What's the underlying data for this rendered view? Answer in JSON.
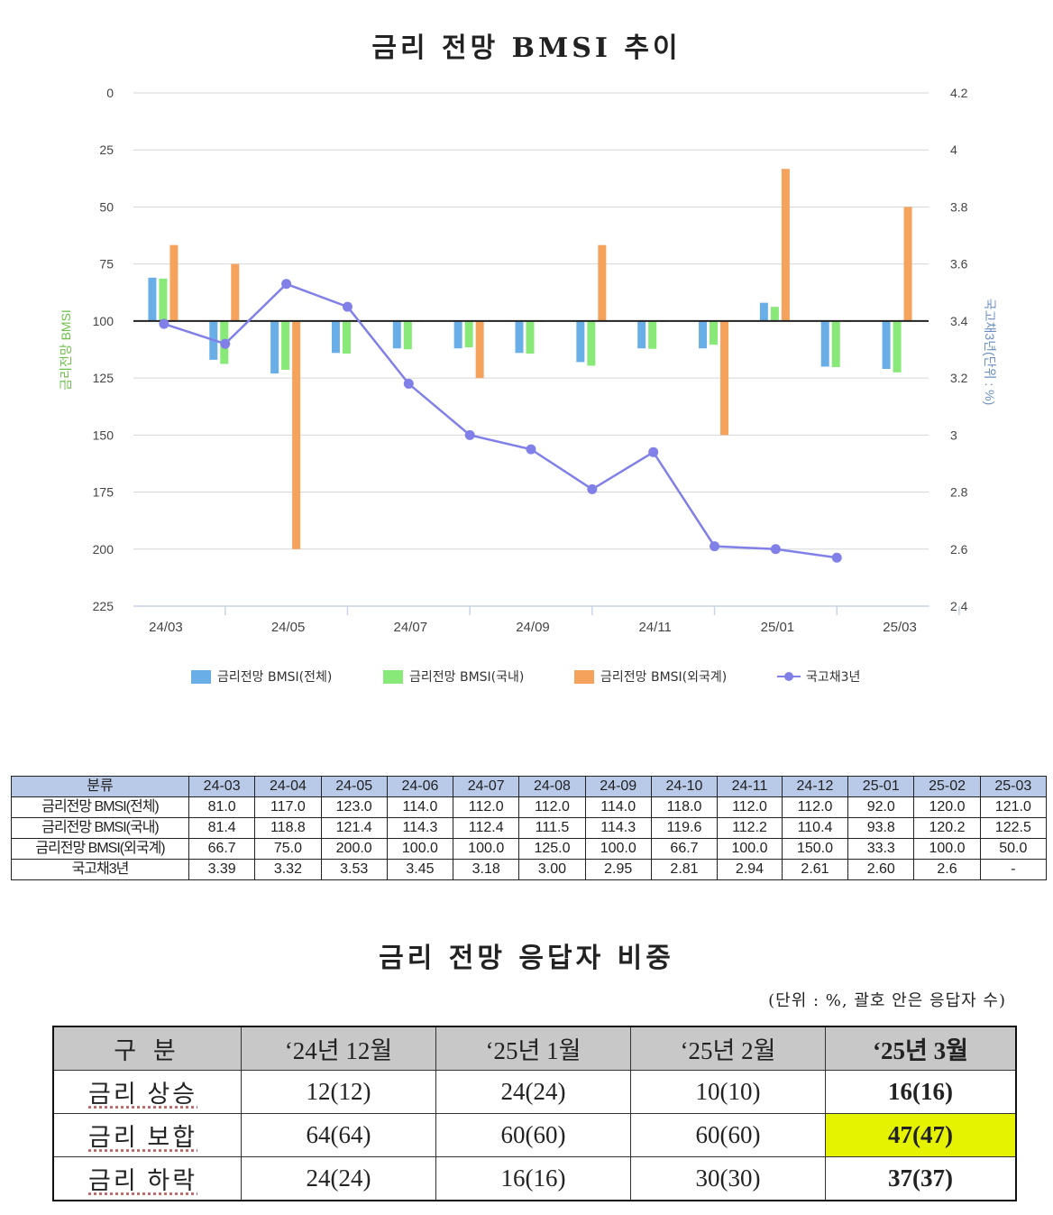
{
  "chart_title": "금리 전망 BMSI 추이",
  "chart_data": {
    "type": "bar",
    "title": "금리 전망 BMSI 추이",
    "categories": [
      "24-03",
      "24-04",
      "24-05",
      "24-06",
      "24-07",
      "24-08",
      "24-09",
      "24-10",
      "24-11",
      "24-12",
      "25-01",
      "25-02",
      "25-03"
    ],
    "x_tick_labels": [
      "24/03",
      "24/05",
      "24/07",
      "24/09",
      "24/11",
      "25/01",
      "25/03"
    ],
    "series": [
      {
        "name": "금리전망 BMSI(전체)",
        "type": "bar",
        "axis": "left",
        "color": "#6aaee8",
        "values": [
          81.0,
          117.0,
          123.0,
          114.0,
          112.0,
          112.0,
          114.0,
          118.0,
          112.0,
          112.0,
          92.0,
          120.0,
          121.0
        ]
      },
      {
        "name": "금리전망 BMSI(국내)",
        "type": "bar",
        "axis": "left",
        "color": "#88e878",
        "values": [
          81.4,
          118.8,
          121.4,
          114.3,
          112.4,
          111.5,
          114.3,
          119.6,
          112.2,
          110.4,
          93.8,
          120.2,
          122.5
        ]
      },
      {
        "name": "금리전망 BMSI(외국계)",
        "type": "bar",
        "axis": "left",
        "color": "#f5a25d",
        "values": [
          66.7,
          75.0,
          200.0,
          100.0,
          100.0,
          125.0,
          100.0,
          66.7,
          100.0,
          150.0,
          33.3,
          100.0,
          50.0
        ]
      },
      {
        "name": "국고채3년",
        "type": "line",
        "axis": "right",
        "color": "#8080e8",
        "values": [
          3.39,
          3.32,
          3.53,
          3.45,
          3.18,
          3.0,
          2.95,
          2.81,
          2.94,
          2.61,
          2.6,
          2.57,
          null
        ]
      }
    ],
    "left_axis": {
      "label": "금리전망 BMSI",
      "min": 0,
      "max": 225,
      "reversed": true,
      "ticks": [
        0,
        25,
        50,
        75,
        100,
        125,
        150,
        175,
        200,
        225
      ],
      "baseline": 100,
      "label_color": "#6cc04a"
    },
    "right_axis": {
      "label": "국고채3년(단위 : %)",
      "min": 2.4,
      "max": 4.2,
      "ticks": [
        "4.2",
        "4",
        "3.8",
        "3.6",
        "3.4",
        "3.2",
        "3",
        "2.8",
        "2.6",
        "2.4"
      ],
      "label_color": "#6a8fc0"
    },
    "grid": true,
    "legend_position": "bottom"
  },
  "data_table": {
    "header_label": "분류",
    "columns": [
      "24-03",
      "24-04",
      "24-05",
      "24-06",
      "24-07",
      "24-08",
      "24-09",
      "24-10",
      "24-11",
      "24-12",
      "25-01",
      "25-02",
      "25-03"
    ],
    "rows": [
      {
        "label": "금리전망 BMSI(전체)",
        "values": [
          "81.0",
          "117.0",
          "123.0",
          "114.0",
          "112.0",
          "112.0",
          "114.0",
          "118.0",
          "112.0",
          "112.0",
          "92.0",
          "120.0",
          "121.0"
        ]
      },
      {
        "label": "금리전망 BMSI(국내)",
        "values": [
          "81.4",
          "118.8",
          "121.4",
          "114.3",
          "112.4",
          "111.5",
          "114.3",
          "119.6",
          "112.2",
          "110.4",
          "93.8",
          "120.2",
          "122.5"
        ]
      },
      {
        "label": "금리전망 BMSI(외국계)",
        "values": [
          "66.7",
          "75.0",
          "200.0",
          "100.0",
          "100.0",
          "125.0",
          "100.0",
          "66.7",
          "100.0",
          "150.0",
          "33.3",
          "100.0",
          "50.0"
        ]
      },
      {
        "label": "국고채3년",
        "values": [
          "3.39",
          "3.32",
          "3.53",
          "3.45",
          "3.18",
          "3.00",
          "2.95",
          "2.81",
          "2.94",
          "2.61",
          "2.60",
          "2.6",
          "-"
        ]
      }
    ]
  },
  "response_section": {
    "title": "금리 전망 응답자 비중",
    "unit_note": "(단위 : %, 괄호 안은 응답자 수)",
    "header": {
      "category": "구 분",
      "c1": "‘24년 12월",
      "c2": "‘25년 1월",
      "c3": "‘25년 2월",
      "c4": "‘25년 3월"
    },
    "rows": [
      {
        "label": "금리 상승",
        "c1": "12(12)",
        "c2": "24(24)",
        "c3": "10(10)",
        "c4": "16(16)"
      },
      {
        "label": "금리 보합",
        "c1": "64(64)",
        "c2": "60(60)",
        "c3": "60(60)",
        "c4": "47(47)"
      },
      {
        "label": "금리 하락",
        "c1": "24(24)",
        "c2": "16(16)",
        "c3": "30(30)",
        "c4": "37(37)"
      }
    ],
    "highlight_color": "#e5f200"
  }
}
